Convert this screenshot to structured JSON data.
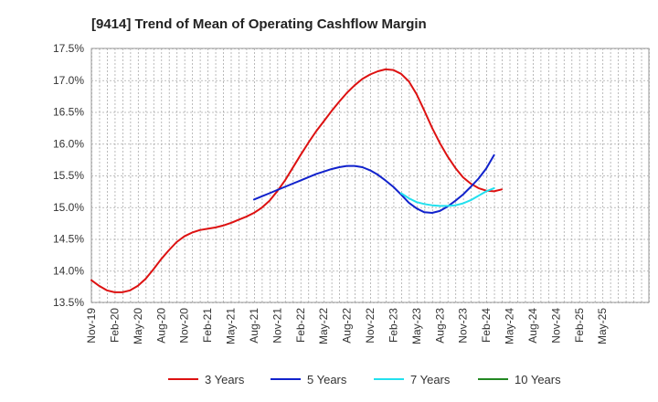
{
  "chart_data": {
    "type": "line",
    "title": "[9414]  Trend of Mean of Operating Cashflow Margin",
    "xlabel": "",
    "ylabel": "",
    "ylim": [
      13.5,
      17.5
    ],
    "y_ticks": [
      {
        "v": 13.5,
        "label": "13.5%"
      },
      {
        "v": 14.0,
        "label": "14.0%"
      },
      {
        "v": 14.5,
        "label": "14.5%"
      },
      {
        "v": 15.0,
        "label": "15.0%"
      },
      {
        "v": 15.5,
        "label": "15.5%"
      },
      {
        "v": 16.0,
        "label": "16.0%"
      },
      {
        "v": 16.5,
        "label": "16.5%"
      },
      {
        "v": 17.0,
        "label": "17.0%"
      },
      {
        "v": 17.5,
        "label": "17.5%"
      }
    ],
    "x_range_months": [
      0,
      72
    ],
    "x_ticks": [
      {
        "m": 0,
        "label": "Nov-19"
      },
      {
        "m": 3,
        "label": "Feb-20"
      },
      {
        "m": 6,
        "label": "May-20"
      },
      {
        "m": 9,
        "label": "Aug-20"
      },
      {
        "m": 12,
        "label": "Nov-20"
      },
      {
        "m": 15,
        "label": "Feb-21"
      },
      {
        "m": 18,
        "label": "May-21"
      },
      {
        "m": 21,
        "label": "Aug-21"
      },
      {
        "m": 24,
        "label": "Nov-21"
      },
      {
        "m": 27,
        "label": "Feb-22"
      },
      {
        "m": 30,
        "label": "May-22"
      },
      {
        "m": 33,
        "label": "Aug-22"
      },
      {
        "m": 36,
        "label": "Nov-22"
      },
      {
        "m": 39,
        "label": "Feb-23"
      },
      {
        "m": 42,
        "label": "May-23"
      },
      {
        "m": 45,
        "label": "Aug-23"
      },
      {
        "m": 48,
        "label": "Nov-23"
      },
      {
        "m": 51,
        "label": "Feb-24"
      },
      {
        "m": 54,
        "label": "May-24"
      },
      {
        "m": 57,
        "label": "Aug-24"
      },
      {
        "m": 60,
        "label": "Nov-24"
      },
      {
        "m": 63,
        "label": "Feb-25"
      },
      {
        "m": 66,
        "label": "May-25"
      }
    ],
    "series": [
      {
        "name": "3 Years",
        "color": "#dd1111",
        "points": [
          [
            0,
            13.85
          ],
          [
            1,
            13.76
          ],
          [
            2,
            13.69
          ],
          [
            3,
            13.66
          ],
          [
            4,
            13.66
          ],
          [
            5,
            13.69
          ],
          [
            6,
            13.76
          ],
          [
            7,
            13.87
          ],
          [
            8,
            14.02
          ],
          [
            9,
            14.18
          ],
          [
            10,
            14.32
          ],
          [
            11,
            14.45
          ],
          [
            12,
            14.54
          ],
          [
            13,
            14.6
          ],
          [
            14,
            14.64
          ],
          [
            15,
            14.66
          ],
          [
            16,
            14.68
          ],
          [
            17,
            14.71
          ],
          [
            18,
            14.75
          ],
          [
            19,
            14.8
          ],
          [
            20,
            14.85
          ],
          [
            21,
            14.91
          ],
          [
            22,
            14.99
          ],
          [
            23,
            15.1
          ],
          [
            24,
            15.25
          ],
          [
            25,
            15.42
          ],
          [
            26,
            15.62
          ],
          [
            27,
            15.82
          ],
          [
            28,
            16.01
          ],
          [
            29,
            16.19
          ],
          [
            30,
            16.35
          ],
          [
            31,
            16.51
          ],
          [
            32,
            16.66
          ],
          [
            33,
            16.8
          ],
          [
            34,
            16.92
          ],
          [
            35,
            17.02
          ],
          [
            36,
            17.09
          ],
          [
            37,
            17.14
          ],
          [
            38,
            17.17
          ],
          [
            39,
            17.16
          ],
          [
            40,
            17.1
          ],
          [
            41,
            16.98
          ],
          [
            42,
            16.78
          ],
          [
            43,
            16.52
          ],
          [
            44,
            16.25
          ],
          [
            45,
            16.01
          ],
          [
            46,
            15.8
          ],
          [
            47,
            15.62
          ],
          [
            48,
            15.47
          ],
          [
            49,
            15.37
          ],
          [
            50,
            15.3
          ],
          [
            51,
            15.26
          ],
          [
            52,
            15.25
          ],
          [
            53,
            15.28
          ]
        ]
      },
      {
        "name": "5 Years",
        "color": "#1122cc",
        "points": [
          [
            21,
            15.12
          ],
          [
            22,
            15.17
          ],
          [
            23,
            15.22
          ],
          [
            24,
            15.27
          ],
          [
            25,
            15.32
          ],
          [
            26,
            15.37
          ],
          [
            27,
            15.42
          ],
          [
            28,
            15.47
          ],
          [
            29,
            15.52
          ],
          [
            30,
            15.56
          ],
          [
            31,
            15.6
          ],
          [
            32,
            15.63
          ],
          [
            33,
            15.65
          ],
          [
            34,
            15.65
          ],
          [
            35,
            15.63
          ],
          [
            36,
            15.58
          ],
          [
            37,
            15.51
          ],
          [
            38,
            15.42
          ],
          [
            39,
            15.32
          ],
          [
            40,
            15.2
          ],
          [
            41,
            15.07
          ],
          [
            42,
            14.98
          ],
          [
            43,
            14.92
          ],
          [
            44,
            14.91
          ],
          [
            45,
            14.94
          ],
          [
            46,
            15.01
          ],
          [
            47,
            15.1
          ],
          [
            48,
            15.2
          ],
          [
            49,
            15.32
          ],
          [
            50,
            15.45
          ],
          [
            51,
            15.61
          ],
          [
            52,
            15.82
          ]
        ]
      },
      {
        "name": "7 Years",
        "color": "#22e0ee",
        "points": [
          [
            40,
            15.22
          ],
          [
            41,
            15.14
          ],
          [
            42,
            15.08
          ],
          [
            43,
            15.05
          ],
          [
            44,
            15.03
          ],
          [
            45,
            15.02
          ],
          [
            46,
            15.02
          ],
          [
            47,
            15.03
          ],
          [
            48,
            15.06
          ],
          [
            49,
            15.11
          ],
          [
            50,
            15.18
          ],
          [
            51,
            15.25
          ],
          [
            52,
            15.3
          ]
        ]
      },
      {
        "name": "10 Years",
        "color": "#228822",
        "points": []
      }
    ],
    "legend": {
      "position": "bottom"
    },
    "grid": true
  }
}
